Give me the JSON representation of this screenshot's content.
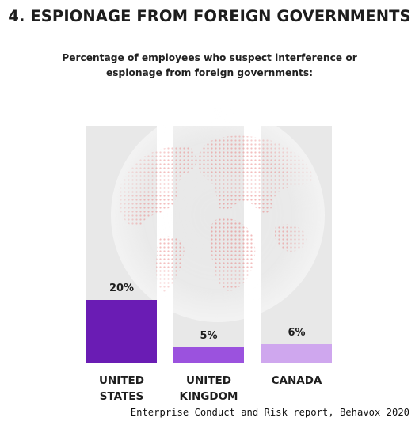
{
  "headline": "4. ESPIONAGE FROM FOREIGN GOVERNMENTS",
  "subtitle_lines": [
    "Percentage of employees who suspect interference or",
    "espionage from foreign governments:"
  ],
  "chart_data": {
    "type": "bar",
    "categories": [
      "UNITED STATES",
      "UNITED KINGDOM",
      "CANADA"
    ],
    "category_label_lines": [
      [
        "UNITED",
        "STATES"
      ],
      [
        "UNITED",
        "KINGDOM"
      ],
      [
        "CANADA"
      ]
    ],
    "values": [
      20,
      5,
      6
    ],
    "value_labels": [
      "20%",
      "5%",
      "6%"
    ],
    "ylim": [
      0,
      75
    ],
    "bar_colors": [
      "#6a1cb4",
      "#9b52de",
      "#cfa7ee"
    ],
    "track_color": "#e8e8e8",
    "background_image": "world-globe-dotted-red",
    "grid": false
  },
  "source": "Enterprise Conduct and Risk report, Behavox 2020"
}
